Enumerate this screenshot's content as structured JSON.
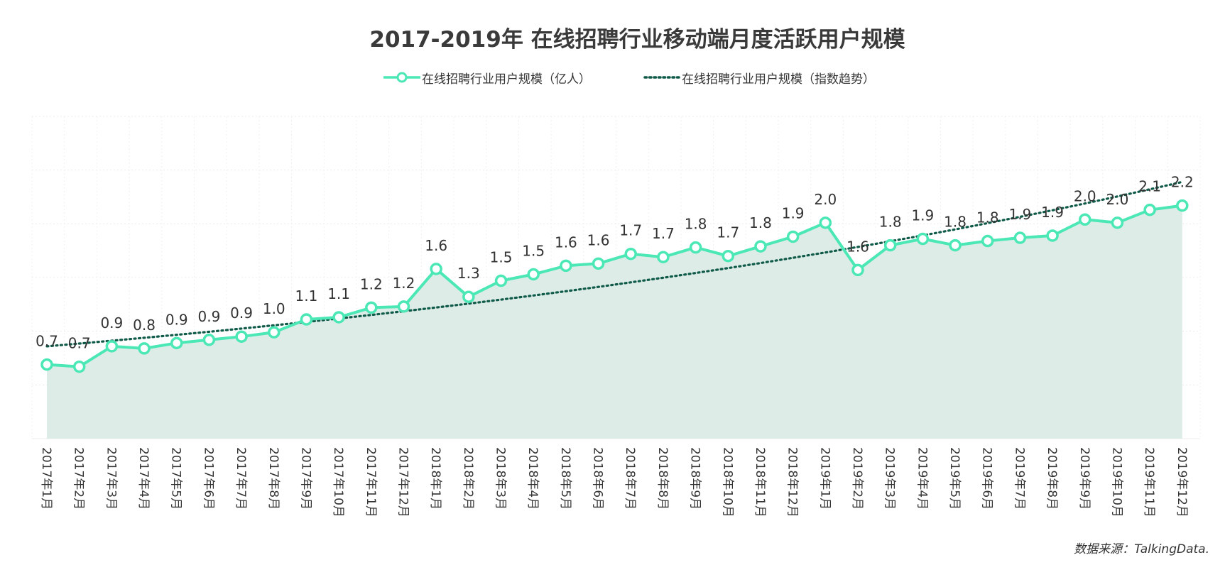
{
  "chart_data": {
    "type": "line",
    "title": "2017-2019年  在线招聘行业移动端月度活跃用户规模",
    "categories": [
      "2017年1月",
      "2017年2月",
      "2017年3月",
      "2017年4月",
      "2017年5月",
      "2017年6月",
      "2017年7月",
      "2017年8月",
      "2017年9月",
      "2017年10月",
      "2017年11月",
      "2017年12月",
      "2018年1月",
      "2018年2月",
      "2018年3月",
      "2018年4月",
      "2018年5月",
      "2018年6月",
      "2018年7月",
      "2018年8月",
      "2018年9月",
      "2018年10月",
      "2018年11月",
      "2018年12月",
      "2019年1月",
      "2019年2月",
      "2019年3月",
      "2019年4月",
      "2019年5月",
      "2019年6月",
      "2019年7月",
      "2019年8月",
      "2019年9月",
      "2019年10月",
      "2019年11月",
      "2019年12月"
    ],
    "series": [
      {
        "name": "在线招聘行业用户规模（亿人）",
        "color": "#4be8b6",
        "values": [
          0.69,
          0.67,
          0.86,
          0.84,
          0.89,
          0.92,
          0.95,
          0.99,
          1.11,
          1.13,
          1.22,
          1.23,
          1.58,
          1.32,
          1.47,
          1.53,
          1.61,
          1.63,
          1.72,
          1.69,
          1.78,
          1.7,
          1.79,
          1.88,
          2.01,
          1.57,
          1.8,
          1.86,
          1.8,
          1.84,
          1.87,
          1.89,
          2.04,
          2.01,
          2.13,
          2.17
        ],
        "labels": [
          "0.7",
          "0.7",
          "0.9",
          "0.8",
          "0.9",
          "0.9",
          "0.9",
          "1.0",
          "1.1",
          "1.1",
          "1.2",
          "1.2",
          "1.6",
          "1.3",
          "1.5",
          "1.5",
          "1.6",
          "1.6",
          "1.7",
          "1.7",
          "1.8",
          "1.7",
          "1.8",
          "1.9",
          "2.0",
          "1.6",
          "1.8",
          "1.9",
          "1.8",
          "1.8",
          "1.9",
          "1.9",
          "2.0",
          "2.0",
          "2.1",
          "2.2"
        ]
      },
      {
        "name": "在线招聘行业用户规模（指数趋势）",
        "color": "#0f5a48",
        "style": "dotted",
        "trend": "exponential",
        "start": 0.86,
        "end": 2.39
      }
    ],
    "ylim": [
      0,
      3
    ],
    "area_fill": "#deece8",
    "grid": true,
    "legend_position": "top"
  },
  "source": "数据来源：TalkingData."
}
